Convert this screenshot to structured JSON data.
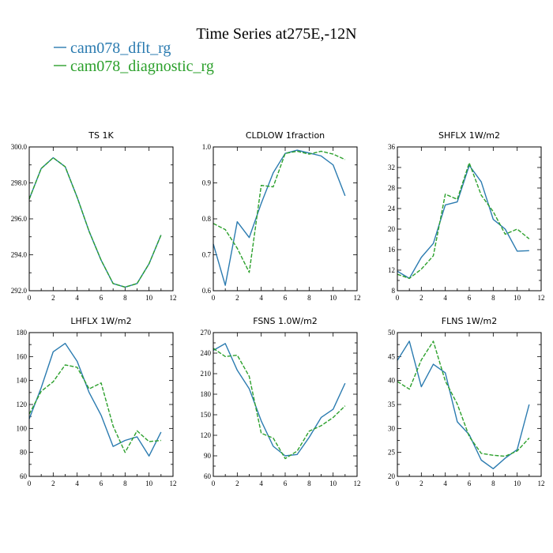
{
  "figure": {
    "title": "Time Series at275E,-12N",
    "legend": [
      {
        "name": "cam078_dflt_rg",
        "color": "#2b7bb0",
        "dashed": false
      },
      {
        "name": "cam078_diagnostic_rg",
        "color": "#2ca02c",
        "dashed": true
      }
    ]
  },
  "chart_data": [
    {
      "type": "line",
      "title": "TS   1K",
      "x": [
        0,
        1,
        2,
        3,
        4,
        5,
        6,
        7,
        8,
        9,
        10,
        11
      ],
      "xlim": [
        0,
        12
      ],
      "xticks": [
        0,
        2,
        4,
        6,
        8,
        10,
        12
      ],
      "ylim": [
        292.0,
        300.0
      ],
      "yticks": [
        292.0,
        294.0,
        296.0,
        298.0,
        300.0
      ],
      "ytick_labels": [
        "292.0",
        "294.0",
        "296.0",
        "298.0",
        "300.0"
      ],
      "series": [
        {
          "name": "cam078_dflt_rg",
          "values": [
            297.1,
            298.8,
            299.4,
            298.9,
            297.2,
            295.3,
            293.7,
            292.4,
            292.2,
            292.4,
            293.5,
            295.1
          ]
        },
        {
          "name": "cam078_diagnostic_rg",
          "values": [
            297.1,
            298.8,
            299.4,
            298.9,
            297.2,
            295.3,
            293.7,
            292.4,
            292.2,
            292.4,
            293.5,
            295.1
          ]
        }
      ]
    },
    {
      "type": "line",
      "title": "CLDLOW   1fraction",
      "x": [
        0,
        1,
        2,
        3,
        4,
        5,
        6,
        7,
        8,
        9,
        10,
        11
      ],
      "xlim": [
        0,
        12
      ],
      "xticks": [
        0,
        2,
        4,
        6,
        8,
        10,
        12
      ],
      "ylim": [
        0.6,
        1.0
      ],
      "yticks": [
        0.6,
        0.7,
        0.8,
        0.9,
        1.0
      ],
      "ytick_labels": [
        "0.6",
        "0.7",
        "0.8",
        "0.9",
        "1.0"
      ],
      "series": [
        {
          "name": "cam078_dflt_rg",
          "values": [
            0.73,
            0.615,
            0.792,
            0.748,
            0.843,
            0.928,
            0.982,
            0.991,
            0.983,
            0.975,
            0.95,
            0.864
          ]
        },
        {
          "name": "cam078_diagnostic_rg",
          "values": [
            0.787,
            0.77,
            0.718,
            0.651,
            0.893,
            0.889,
            0.982,
            0.988,
            0.98,
            0.988,
            0.98,
            0.965
          ]
        }
      ]
    },
    {
      "type": "line",
      "title": "SHFLX   1W/m2",
      "x": [
        0,
        1,
        2,
        3,
        4,
        5,
        6,
        7,
        8,
        9,
        10,
        11
      ],
      "xlim": [
        0,
        12
      ],
      "xticks": [
        0,
        2,
        4,
        6,
        8,
        10,
        12
      ],
      "ylim": [
        8,
        36
      ],
      "yticks": [
        8,
        12,
        16,
        20,
        24,
        28,
        32,
        36
      ],
      "ytick_labels": [
        "8",
        "12",
        "16",
        "20",
        "24",
        "28",
        "32",
        "36"
      ],
      "series": [
        {
          "name": "cam078_dflt_rg",
          "values": [
            11.8,
            10.4,
            14.5,
            17.2,
            24.7,
            25.3,
            32.4,
            29.2,
            21.9,
            20.0,
            15.7,
            15.8
          ]
        },
        {
          "name": "cam078_diagnostic_rg",
          "values": [
            11.2,
            10.4,
            12.2,
            14.8,
            26.8,
            25.8,
            32.9,
            26.6,
            23.4,
            19.0,
            20.0,
            18.1
          ]
        }
      ]
    },
    {
      "type": "line",
      "title": "LHFLX   1W/m2",
      "x": [
        0,
        1,
        2,
        3,
        4,
        5,
        6,
        7,
        8,
        9,
        10,
        11
      ],
      "xlim": [
        0,
        12
      ],
      "xticks": [
        0,
        2,
        4,
        6,
        8,
        10,
        12
      ],
      "ylim": [
        60,
        180
      ],
      "yticks": [
        60,
        80,
        100,
        120,
        140,
        160,
        180
      ],
      "ytick_labels": [
        "60",
        "80",
        "100",
        "120",
        "140",
        "160",
        "180"
      ],
      "series": [
        {
          "name": "cam078_dflt_rg",
          "values": [
            108,
            134,
            164,
            171,
            156,
            130,
            111,
            85,
            90,
            93,
            77,
            97
          ]
        },
        {
          "name": "cam078_diagnostic_rg",
          "values": [
            112,
            131,
            139,
            153,
            151,
            133,
            138,
            102,
            80,
            98,
            89,
            90
          ]
        }
      ]
    },
    {
      "type": "line",
      "title": "FSNS   1.0W/m2",
      "x": [
        0,
        1,
        2,
        3,
        4,
        5,
        6,
        7,
        8,
        9,
        10,
        11
      ],
      "xlim": [
        0,
        12
      ],
      "xticks": [
        0,
        2,
        4,
        6,
        8,
        10,
        12
      ],
      "ylim": [
        60,
        270
      ],
      "yticks": [
        60,
        90,
        120,
        150,
        180,
        210,
        240,
        270
      ],
      "ytick_labels": [
        "60",
        "90",
        "120",
        "150",
        "180",
        "210",
        "240",
        "270"
      ],
      "series": [
        {
          "name": "cam078_dflt_rg",
          "values": [
            244,
            254,
            215,
            188,
            141,
            104,
            90,
            92,
            117,
            146,
            158,
            196
          ]
        },
        {
          "name": "cam078_diagnostic_rg",
          "values": [
            247,
            235,
            237,
            206,
            123,
            116,
            86,
            97,
            126,
            134,
            146,
            163
          ]
        }
      ]
    },
    {
      "type": "line",
      "title": "FLNS   1W/m2",
      "x": [
        0,
        1,
        2,
        3,
        4,
        5,
        6,
        7,
        8,
        9,
        10,
        11
      ],
      "xlim": [
        0,
        12
      ],
      "xticks": [
        0,
        2,
        4,
        6,
        8,
        10,
        12
      ],
      "ylim": [
        20,
        50
      ],
      "yticks": [
        20,
        25,
        30,
        35,
        40,
        45,
        50
      ],
      "ytick_labels": [
        "20",
        "25",
        "30",
        "35",
        "40",
        "45",
        "50"
      ],
      "series": [
        {
          "name": "cam078_dflt_rg",
          "values": [
            44.2,
            48.2,
            38.7,
            43.4,
            41.6,
            31.4,
            28.7,
            23.4,
            21.6,
            23.8,
            25.6,
            35.0
          ]
        },
        {
          "name": "cam078_diagnostic_rg",
          "values": [
            39.8,
            38.2,
            44.3,
            48.2,
            39.9,
            35.1,
            28.3,
            24.8,
            24.4,
            24.2,
            25.3,
            28.0
          ]
        }
      ]
    }
  ]
}
